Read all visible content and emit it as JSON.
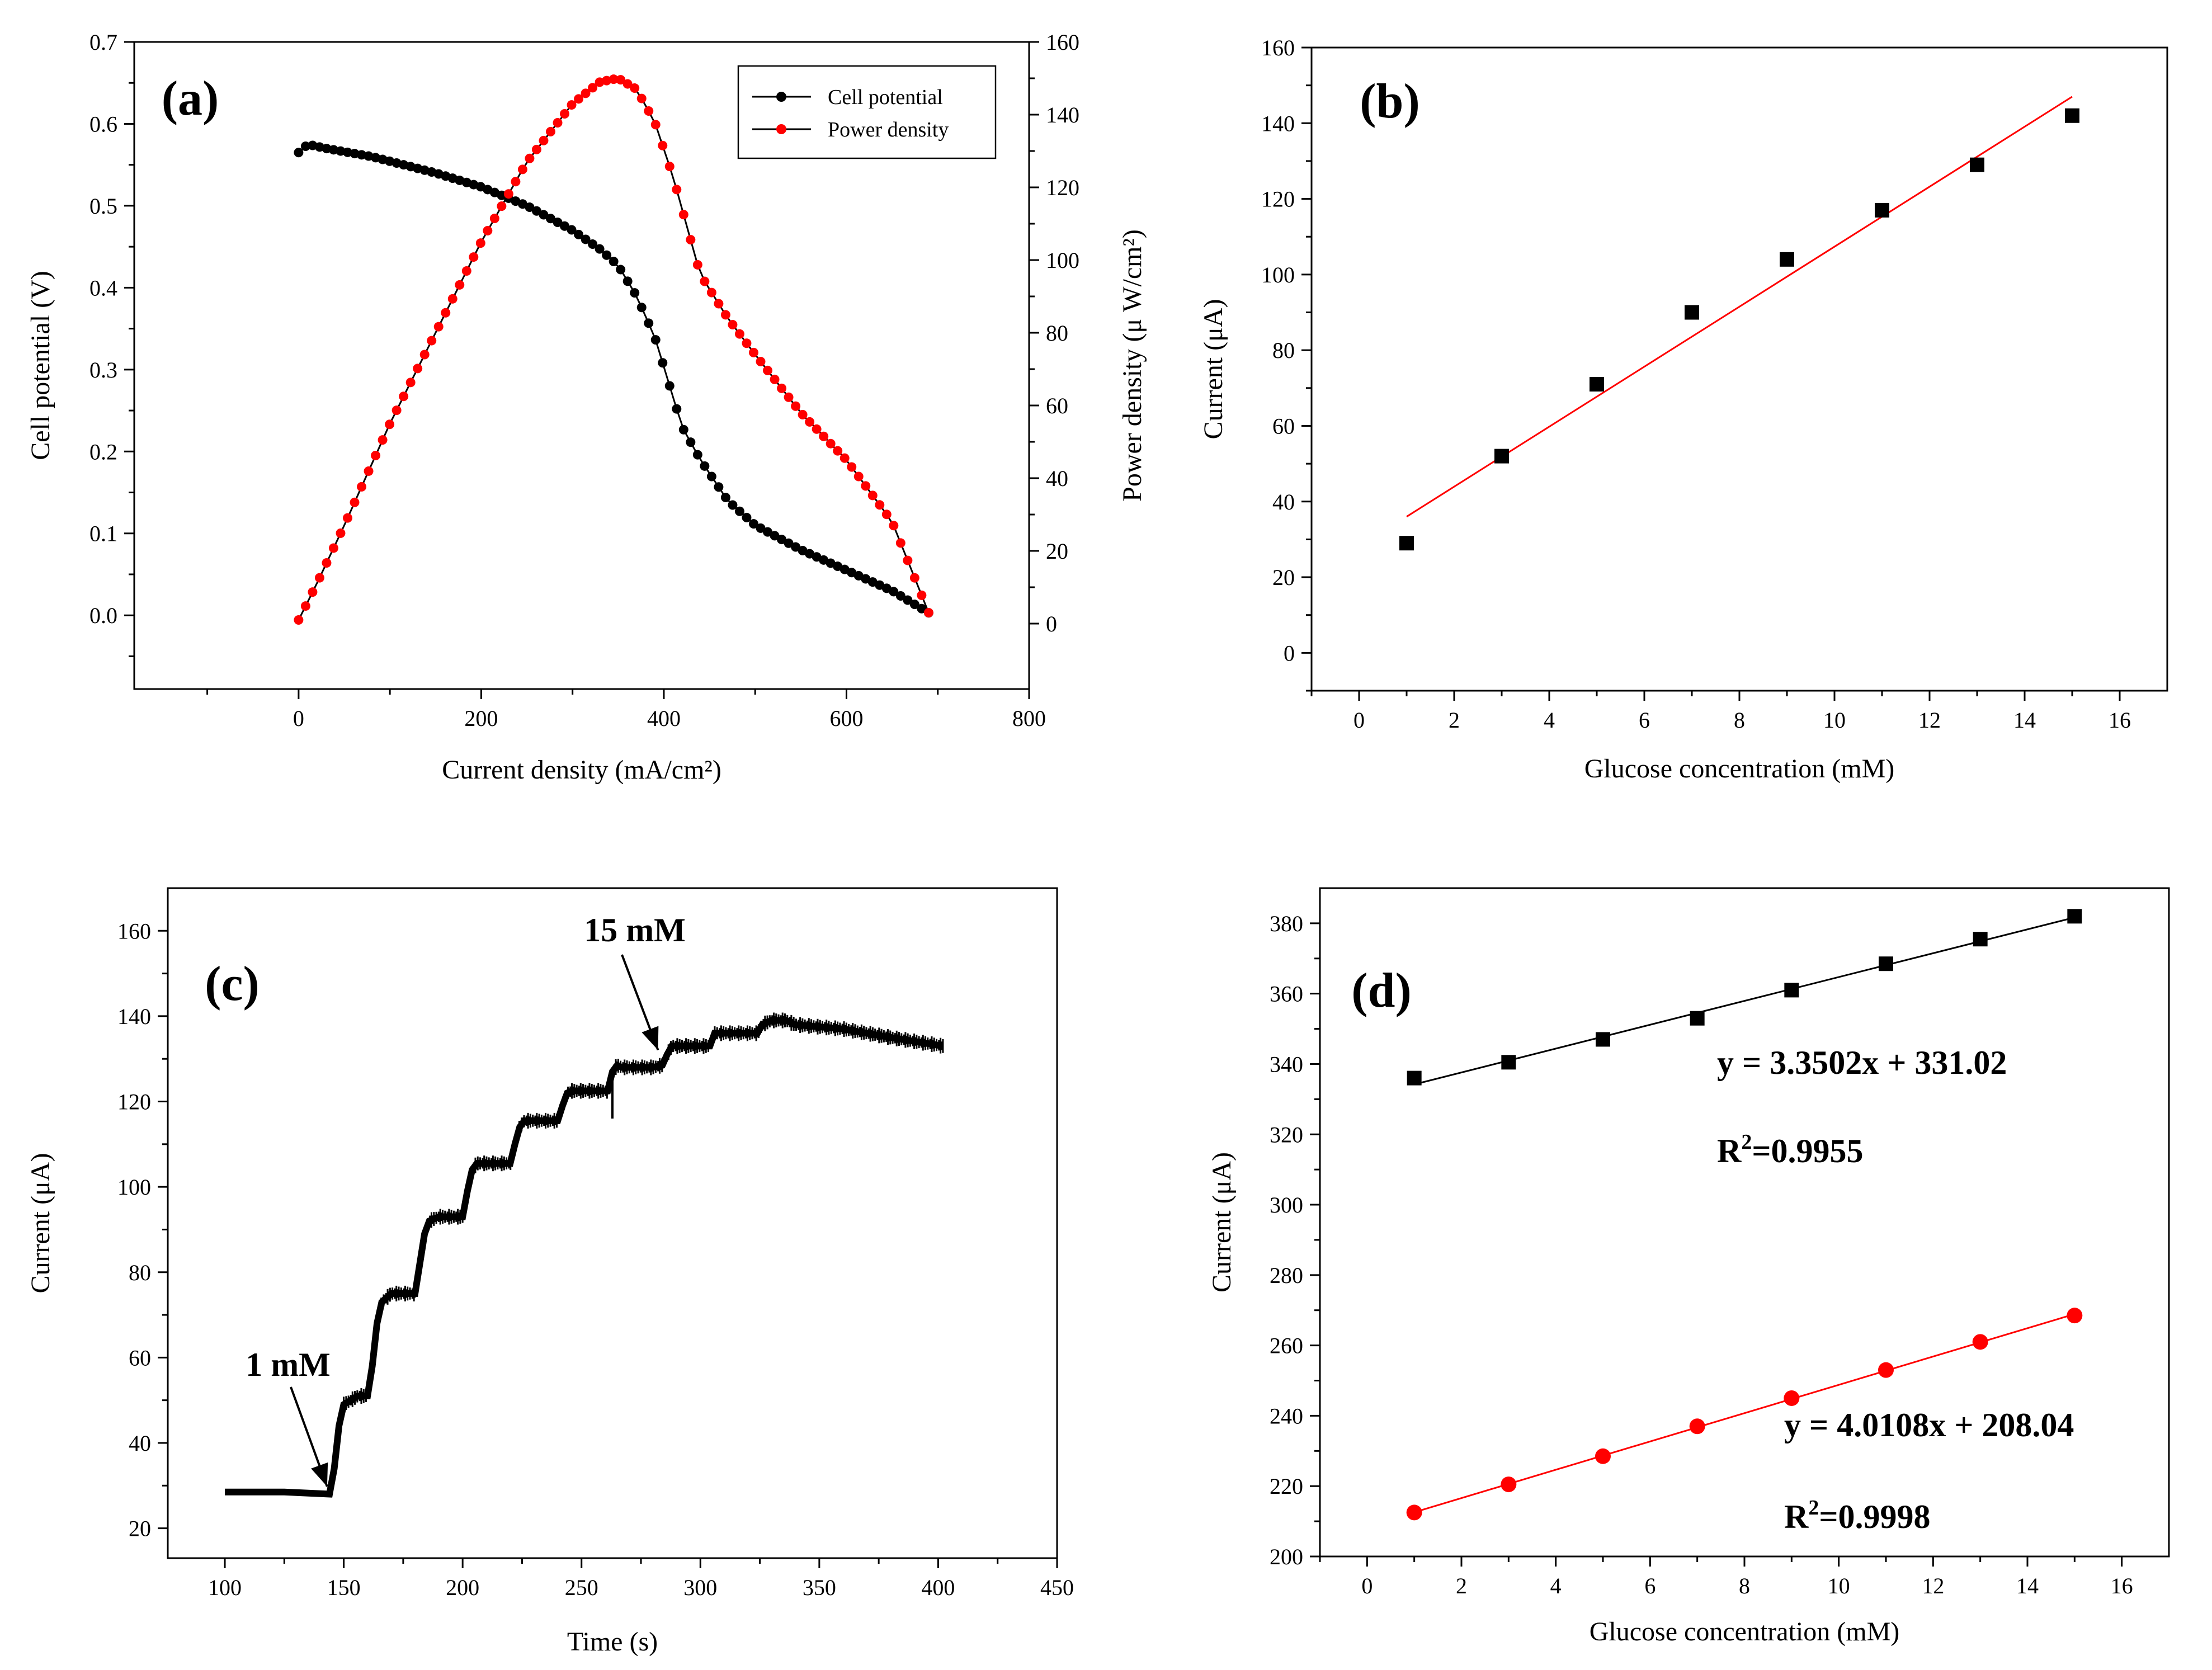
{
  "figure_title": "",
  "chart_data": [
    {
      "panel": "(a)",
      "type": "scatter",
      "xlabel": "Current density (mA/cm²)",
      "ylabel": "Cell potential (V)",
      "y2label": "Power density (μ W/cm²)",
      "xlim": [
        -180,
        800
      ],
      "ylim": [
        -0.09,
        0.7
      ],
      "y2lim": [
        -18,
        160
      ],
      "xticks": [
        0,
        200,
        400,
        600,
        800
      ],
      "yticks": [
        0.0,
        0.1,
        0.2,
        0.3,
        0.4,
        0.5,
        0.6,
        0.7
      ],
      "ytick_labels": [
        "0.0",
        "0.1",
        "0.2",
        "0.3",
        "0.4",
        "0.5",
        "0.6",
        "0.7"
      ],
      "y2ticks": [
        0,
        20,
        40,
        60,
        80,
        100,
        120,
        140,
        160
      ],
      "legend": [
        "Cell potential",
        "Power density"
      ],
      "series": [
        {
          "name": "Cell potential",
          "axis": "left",
          "color": "#000000",
          "x": [
            0,
            10,
            30,
            80,
            150,
            200,
            250,
            300,
            330,
            350,
            370,
            390,
            405,
            420,
            440,
            470,
            500,
            550,
            600,
            650,
            690
          ],
          "y": [
            0.565,
            0.575,
            0.57,
            0.56,
            0.54,
            0.523,
            0.5,
            0.47,
            0.447,
            0.427,
            0.39,
            0.34,
            0.285,
            0.23,
            0.19,
            0.14,
            0.11,
            0.08,
            0.055,
            0.03,
            0.003
          ]
        },
        {
          "name": "Power density",
          "axis": "right",
          "color": "#ff0000",
          "x": [
            0,
            20,
            50,
            100,
            150,
            200,
            250,
            300,
            330,
            350,
            370,
            390,
            410,
            440,
            470,
            500,
            550,
            600,
            650,
            690
          ],
          "y": [
            1,
            11,
            27,
            55,
            80,
            105,
            127,
            143,
            149,
            150,
            147,
            138,
            123,
            96,
            84,
            74,
            58,
            45,
            28,
            3
          ]
        }
      ]
    },
    {
      "panel": "(b)",
      "type": "scatter",
      "xlabel": "Glucose concentration (mM)",
      "ylabel": "Current (μA)",
      "xlim": [
        -1,
        17
      ],
      "ylim": [
        -10,
        160
      ],
      "xticks": [
        0,
        2,
        4,
        6,
        8,
        10,
        12,
        14,
        16
      ],
      "yticks": [
        0,
        20,
        40,
        60,
        80,
        100,
        120,
        140,
        160
      ],
      "series": [
        {
          "name": "data",
          "color": "#000000",
          "x": [
            1,
            3,
            5,
            7,
            9,
            11,
            13,
            15
          ],
          "y": [
            29,
            52,
            71,
            90,
            104,
            117,
            129,
            142
          ]
        }
      ],
      "fit": {
        "color": "#ff0000",
        "x": [
          1,
          15
        ],
        "y": [
          36,
          147
        ]
      }
    },
    {
      "panel": "(c)",
      "type": "line",
      "xlabel": "Time (s)",
      "ylabel": "Current (μA)",
      "xlim": [
        76,
        450
      ],
      "ylim": [
        13,
        170
      ],
      "xticks": [
        100,
        150,
        200,
        250,
        300,
        350,
        400,
        450
      ],
      "yticks": [
        20,
        40,
        60,
        80,
        100,
        120,
        140,
        160
      ],
      "series": [
        {
          "name": "Current",
          "color": "#000000",
          "x": [
            100,
            125,
            144,
            146,
            148,
            150,
            156,
            160,
            162,
            164,
            166,
            170,
            180,
            182,
            184,
            186,
            190,
            200,
            202,
            204,
            206,
            210,
            220,
            222,
            224,
            226,
            230,
            240,
            242,
            244,
            246,
            250,
            261,
            263,
            265,
            267,
            270,
            280,
            284,
            286,
            288,
            290,
            300,
            304,
            306,
            310,
            320,
            324,
            326,
            330,
            336,
            340,
            360,
            380,
            402
          ],
          "y": [
            28.5,
            28.5,
            28,
            34,
            44,
            49,
            51,
            51,
            58,
            68,
            73,
            75,
            75,
            82,
            89,
            92,
            93,
            93,
            99,
            104,
            105.5,
            105.5,
            105.5,
            110,
            114,
            115.5,
            115.5,
            115.5,
            119,
            122,
            122.5,
            122.5,
            122.5,
            127,
            128.5,
            128,
            128,
            128,
            128.5,
            131,
            133,
            133,
            133,
            133,
            136,
            136,
            136,
            136,
            138,
            139,
            139,
            138,
            137,
            135,
            133
          ]
        }
      ],
      "annotations": [
        {
          "text": "1 mM",
          "x": 143,
          "y": 29
        },
        {
          "text": "15 mM",
          "x": 285,
          "y": 131
        }
      ]
    },
    {
      "panel": "(d)",
      "type": "scatter",
      "xlabel": "Glucose concentration (mM)",
      "ylabel": "Current (μA)",
      "xlim": [
        -1,
        17
      ],
      "ylim": [
        200,
        390
      ],
      "xticks": [
        0,
        2,
        4,
        6,
        8,
        10,
        12,
        14,
        16
      ],
      "yticks": [
        200,
        220,
        240,
        260,
        280,
        300,
        320,
        340,
        360,
        380
      ],
      "series": [
        {
          "name": "black",
          "color": "#000000",
          "marker": "square",
          "x": [
            1,
            3,
            5,
            7,
            9,
            11,
            13,
            15
          ],
          "y": [
            336,
            340.5,
            347,
            353,
            361,
            368.5,
            375.5,
            382
          ],
          "fit_equation": "y = 3.3502x + 331.02",
          "r2_prefix": "R",
          "r2_exp": "2",
          "r2_value": "=0.9955"
        },
        {
          "name": "red",
          "color": "#ff0000",
          "marker": "circle",
          "x": [
            1,
            3,
            5,
            7,
            9,
            11,
            13,
            15
          ],
          "y": [
            212.5,
            220.5,
            228.5,
            237,
            245,
            253,
            261,
            268.5
          ],
          "fit_equation": "y = 4.0108x + 208.04",
          "r2_prefix": "R",
          "r2_exp": "2",
          "r2_value": "=0.9998"
        }
      ]
    }
  ]
}
